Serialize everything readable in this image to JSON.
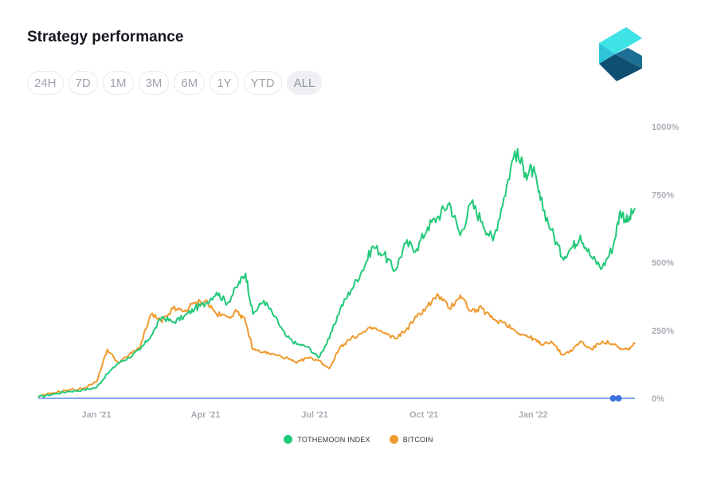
{
  "header": {
    "title": "Strategy performance"
  },
  "ranges": [
    {
      "label": "24H",
      "active": false
    },
    {
      "label": "7D",
      "active": false
    },
    {
      "label": "1M",
      "active": false
    },
    {
      "label": "3M",
      "active": false
    },
    {
      "label": "6M",
      "active": false
    },
    {
      "label": "1Y",
      "active": false
    },
    {
      "label": "YTD",
      "active": false
    },
    {
      "label": "ALL",
      "active": true
    }
  ],
  "colors": {
    "index": "#22c97a",
    "bitcoin": "#ef9a2e",
    "baseline": "#3b6fe0",
    "axis_text": "#a9adb6"
  },
  "legend": [
    {
      "name": "TOTHEMOON INDEX",
      "color": "#22c97a"
    },
    {
      "name": "BITCOIN",
      "color": "#ef9a2e"
    }
  ],
  "chart_data": {
    "type": "line",
    "title": "",
    "xlabel": "",
    "ylabel": "",
    "ylim": [
      0,
      1000
    ],
    "y_ticks": [
      {
        "value": 1000,
        "label": "1000%"
      },
      {
        "value": 750,
        "label": "750%"
      },
      {
        "value": 500,
        "label": "500%"
      },
      {
        "value": 250,
        "label": "250%"
      },
      {
        "value": 0,
        "label": "0%"
      }
    ],
    "x_ticks": [
      {
        "x": 2,
        "label": "Jan '21"
      },
      {
        "x": 5,
        "label": "Apr '21"
      },
      {
        "x": 8,
        "label": "Jul '21"
      },
      {
        "x": 11,
        "label": "Oct '21"
      },
      {
        "x": 14,
        "label": "Jan '22"
      }
    ],
    "xlim": [
      0.4,
      16.8
    ],
    "series": [
      {
        "name": "TOTHEMOON INDEX",
        "key": "index",
        "x": [
          0.4,
          0.8,
          1.2,
          1.6,
          2.0,
          2.3,
          2.6,
          2.9,
          3.2,
          3.5,
          3.8,
          4.1,
          4.4,
          4.7,
          5.0,
          5.3,
          5.6,
          5.9,
          6.1,
          6.3,
          6.6,
          6.9,
          7.2,
          7.5,
          7.8,
          8.1,
          8.4,
          8.7,
          9.0,
          9.3,
          9.6,
          9.9,
          10.2,
          10.5,
          10.8,
          11.1,
          11.4,
          11.7,
          12.0,
          12.3,
          12.6,
          12.9,
          13.2,
          13.5,
          13.8,
          14.0,
          14.2,
          14.5,
          14.8,
          15.1,
          15.3,
          15.6,
          15.9,
          16.2,
          16.4,
          16.6,
          16.8
        ],
        "values": [
          5,
          15,
          25,
          30,
          40,
          90,
          130,
          150,
          180,
          230,
          300,
          280,
          300,
          330,
          350,
          390,
          350,
          420,
          460,
          310,
          360,
          300,
          230,
          200,
          190,
          150,
          220,
          330,
          400,
          470,
          560,
          530,
          470,
          570,
          550,
          630,
          670,
          720,
          600,
          720,
          650,
          580,
          740,
          910,
          830,
          840,
          730,
          620,
          520,
          560,
          600,
          520,
          480,
          560,
          690,
          650,
          700
        ]
      },
      {
        "name": "BITCOIN",
        "key": "bitcoin",
        "x": [
          0.4,
          0.8,
          1.2,
          1.6,
          2.0,
          2.3,
          2.6,
          2.9,
          3.2,
          3.5,
          3.8,
          4.1,
          4.4,
          4.7,
          5.0,
          5.3,
          5.6,
          5.9,
          6.1,
          6.3,
          6.6,
          6.9,
          7.2,
          7.5,
          7.8,
          8.1,
          8.4,
          8.7,
          9.0,
          9.3,
          9.6,
          9.9,
          10.2,
          10.5,
          10.8,
          11.1,
          11.4,
          11.7,
          12.0,
          12.3,
          12.6,
          12.9,
          13.2,
          13.5,
          13.8,
          14.0,
          14.2,
          14.5,
          14.8,
          15.1,
          15.3,
          15.6,
          15.9,
          16.2,
          16.4,
          16.6,
          16.8
        ],
        "values": [
          5,
          20,
          30,
          35,
          60,
          180,
          130,
          160,
          190,
          310,
          280,
          330,
          320,
          350,
          360,
          310,
          300,
          320,
          280,
          180,
          170,
          160,
          150,
          130,
          150,
          140,
          110,
          190,
          220,
          240,
          260,
          240,
          220,
          250,
          300,
          340,
          380,
          330,
          380,
          320,
          330,
          290,
          280,
          250,
          230,
          220,
          200,
          210,
          160,
          180,
          210,
          180,
          210,
          200,
          180,
          180,
          200
        ]
      }
    ],
    "baseline_value": 0,
    "end_markers": [
      16.2,
      16.35
    ]
  }
}
